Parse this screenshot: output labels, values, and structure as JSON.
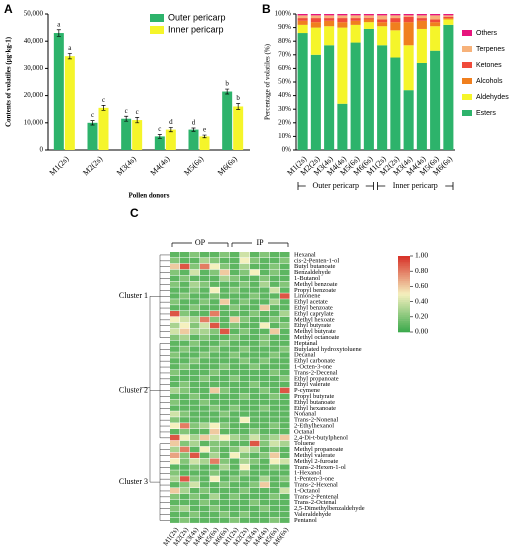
{
  "chart_data": [
    {
      "type": "bar",
      "panel": "A",
      "ylabel": "Contents of volatiles (μg·kg-1)",
      "xlabel": "Pollen donors",
      "categories": [
        "M1(2s)",
        "M2(2s)",
        "M3(4s)",
        "M4(4s)",
        "M5(6s)",
        "M6(6s)"
      ],
      "series": [
        {
          "name": "Outer pericarp",
          "color": "#2db36b",
          "values": [
            43000,
            10000,
            11500,
            5000,
            7500,
            21500
          ],
          "errors": [
            1200,
            800,
            900,
            700,
            600,
            900
          ],
          "letters": [
            "a",
            "c",
            "c",
            "c",
            "d",
            "b"
          ]
        },
        {
          "name": "Inner pericarp",
          "color": "#f5f52a",
          "values": [
            34500,
            15500,
            11000,
            7500,
            5000,
            16000
          ],
          "errors": [
            1000,
            900,
            1000,
            800,
            500,
            1100
          ],
          "letters": [
            "a",
            "c",
            "c",
            "d",
            "e",
            "b"
          ]
        }
      ],
      "ylim": [
        0,
        50000
      ],
      "yticks": [
        0,
        {
          "value": 10000,
          "label": "10,000"
        },
        {
          "value": 20000,
          "label": "20,000"
        },
        {
          "value": 30000,
          "label": "30,000"
        },
        {
          "value": 40000,
          "label": "40,000"
        },
        {
          "value": 50000,
          "label": "50,000"
        }
      ]
    },
    {
      "type": "stacked-bar",
      "panel": "B",
      "ylabel": "Percentage of volatiles (%)",
      "categories": [
        "M1(2s)",
        "M2(2s)",
        "M3(4s)",
        "M4(4s)",
        "M5(6s)",
        "M6(6s)",
        "M1(2s)",
        "M2(2s)",
        "M3(4s)",
        "M4(4s)",
        "M5(6s)",
        "M6(6s)"
      ],
      "groups": [
        "Outer pericarp",
        "Inner pericarp"
      ],
      "series": [
        {
          "name": "Esters",
          "color": "#2db36b",
          "values": [
            86,
            70,
            77,
            34,
            79,
            89,
            77,
            68,
            44,
            64,
            73,
            92
          ]
        },
        {
          "name": "Aldehydes",
          "color": "#f5f52a",
          "values": [
            6,
            20,
            14,
            56,
            13,
            5,
            14,
            20,
            33,
            25,
            18,
            4
          ]
        },
        {
          "name": "Alcohols",
          "color": "#f07f1e",
          "values": [
            3,
            4,
            4,
            4,
            3,
            2,
            3,
            6,
            17,
            6,
            3,
            1
          ]
        },
        {
          "name": "Ketones",
          "color": "#f04a3a",
          "values": [
            2,
            3,
            2,
            3,
            2,
            1,
            2,
            3,
            4,
            2,
            2,
            1
          ]
        },
        {
          "name": "Terpenes",
          "color": "#f7b27a",
          "values": [
            2,
            2,
            2,
            2,
            2,
            2,
            3,
            2,
            1,
            2,
            3,
            1
          ]
        },
        {
          "name": "Others",
          "color": "#e6157d",
          "values": [
            1,
            1,
            1,
            1,
            1,
            1,
            1,
            1,
            1,
            1,
            1,
            1
          ]
        }
      ],
      "ylim": [
        0,
        100
      ],
      "yticks": [
        {
          "value": 0,
          "label": "0%"
        },
        {
          "value": 10,
          "label": "10%"
        },
        {
          "value": 20,
          "label": "20%"
        },
        {
          "value": 30,
          "label": "30%"
        },
        {
          "value": 40,
          "label": "40%"
        },
        {
          "value": 50,
          "label": "50%"
        },
        {
          "value": 60,
          "label": "60%"
        },
        {
          "value": 70,
          "label": "70%"
        },
        {
          "value": 80,
          "label": "80%"
        },
        {
          "value": 90,
          "label": "90%"
        },
        {
          "value": 100,
          "label": "100%"
        }
      ]
    },
    {
      "type": "heatmap",
      "panel": "C",
      "columns": [
        "M1(2s)",
        "M2(2s)",
        "M3(4s)",
        "M4(4s)",
        "M5(6s)",
        "M6(6s)",
        "M1(2s)",
        "M2(2s)",
        "M3(4s)",
        "M4(4s)",
        "M5(6s)",
        "M6(6s)"
      ],
      "groups": [
        "OP",
        "IP"
      ],
      "clusters": [
        "Cluster 1",
        "Cluster 2",
        "Cluster 3"
      ],
      "rows": [
        "Hexanal",
        "cis-2-Penten-1-ol",
        "Butyl butanoate",
        "Benzaldehyde",
        "1-Butanol",
        "Methyl benzoate",
        "Propyl benzoate",
        "Limonene",
        "Ethyl acetate",
        "Ethyl benzoate",
        "Ethyl caprylate",
        "Methyl hexoate",
        "Ethyl butyrate",
        "Methyl butyrate",
        "Methyl octanoate",
        "Heptanal",
        "Butylated hydroxytoluene",
        "Decanal",
        "Ethyl carbonate",
        "1-Octen-3-one",
        "Trans-2-Decenal",
        "Ethyl propanoate",
        "Ethyl valerate",
        "P-cymene",
        "Propyl butyrate",
        "Ethyl butanoate",
        "Ethyl hexanoate",
        "Nonanal",
        "Trans-2-Nonenal",
        "2-Ethylhexanol",
        "Octanal",
        "2,4-Di-t-butylphenol",
        "Toluene",
        "Methyl propanoate",
        "Methyl valerate",
        "Methyl 2-furoate",
        "Trans-2-Hexen-1-ol",
        "1-Hexanol",
        "1-Penten-3-one",
        "Trans-2-Hexenal",
        "1-Octanol",
        "Trans-2-Pentenal",
        "Trans-2-Octenal",
        "2,5-Dimethylbenzaldehyde",
        "Valeraldehyde",
        "Pentanol"
      ],
      "values": [
        [
          0.1,
          0.1,
          0.2,
          0.1,
          0.1,
          0.2,
          0.1,
          0.4,
          0.1,
          0.2,
          0.1,
          0.1
        ],
        [
          0.2,
          0.1,
          0.1,
          0.3,
          0.2,
          0.1,
          0.1,
          0.5,
          0.2,
          0.1,
          0.1,
          0.2
        ],
        [
          0.6,
          0.9,
          0.2,
          0.8,
          0.5,
          0.2,
          0.1,
          0.3,
          0.1,
          0.1,
          0.2,
          0.1
        ],
        [
          0.2,
          0.1,
          0.4,
          0.1,
          0.2,
          0.6,
          0.1,
          0.2,
          0.5,
          0.1,
          0.2,
          0.1
        ],
        [
          0.1,
          0.2,
          0.1,
          0.1,
          0.1,
          0.3,
          0.2,
          0.1,
          0.1,
          0.2,
          0.1,
          0.1
        ],
        [
          0.2,
          0.1,
          0.3,
          0.2,
          0.1,
          0.1,
          0.1,
          0.2,
          0.1,
          0.3,
          0.1,
          0.2
        ],
        [
          0.1,
          0.1,
          0.2,
          0.1,
          0.5,
          0.1,
          0.2,
          0.1,
          0.1,
          0.1,
          0.4,
          0.1
        ],
        [
          0.1,
          0.2,
          0.1,
          0.1,
          0.2,
          0.1,
          0.1,
          0.1,
          0.2,
          0.1,
          0.1,
          0.9
        ],
        [
          0.2,
          0.1,
          0.1,
          0.2,
          0.1,
          0.6,
          0.1,
          0.2,
          0.1,
          0.1,
          0.3,
          0.1
        ],
        [
          0.1,
          0.1,
          0.2,
          0.1,
          0.1,
          0.1,
          0.2,
          0.1,
          0.1,
          0.6,
          0.1,
          0.1
        ],
        [
          0.9,
          0.2,
          0.1,
          0.1,
          0.8,
          0.1,
          0.1,
          0.1,
          0.2,
          0.1,
          0.1,
          0.3
        ],
        [
          0.5,
          0.4,
          0.3,
          0.8,
          0.2,
          0.1,
          0.6,
          0.2,
          0.1,
          0.1,
          0.2,
          0.1
        ],
        [
          0.3,
          0.5,
          0.2,
          0.4,
          0.9,
          0.1,
          0.2,
          0.1,
          0.1,
          0.5,
          0.1,
          0.2
        ],
        [
          0.4,
          0.6,
          0.3,
          0.3,
          0.2,
          0.9,
          0.1,
          0.2,
          0.1,
          0.1,
          0.6,
          0.1
        ],
        [
          0.2,
          0.3,
          0.1,
          0.2,
          0.1,
          0.1,
          0.2,
          0.1,
          0.1,
          0.2,
          0.1,
          0.1
        ],
        [
          0.1,
          0.1,
          0.2,
          0.1,
          0.1,
          0.2,
          0.1,
          0.1,
          0.1,
          0.2,
          0.1,
          0.1
        ],
        [
          0.1,
          0.2,
          0.1,
          0.1,
          0.2,
          0.1,
          0.1,
          0.2,
          0.1,
          0.1,
          0.1,
          0.2
        ],
        [
          0.2,
          0.1,
          0.1,
          0.2,
          0.1,
          0.1,
          0.2,
          0.1,
          0.1,
          0.1,
          0.2,
          0.1
        ],
        [
          0.1,
          0.1,
          0.2,
          0.1,
          0.1,
          0.1,
          0.1,
          0.2,
          0.1,
          0.2,
          0.1,
          0.1
        ],
        [
          0.1,
          0.2,
          0.1,
          0.1,
          0.1,
          0.2,
          0.1,
          0.1,
          0.2,
          0.1,
          0.1,
          0.1
        ],
        [
          0.2,
          0.1,
          0.1,
          0.1,
          0.2,
          0.1,
          0.1,
          0.1,
          0.1,
          0.1,
          0.2,
          0.1
        ],
        [
          0.1,
          0.1,
          0.1,
          0.2,
          0.1,
          0.1,
          0.2,
          0.1,
          0.1,
          0.1,
          0.1,
          0.2
        ],
        [
          0.1,
          0.2,
          0.1,
          0.1,
          0.1,
          0.1,
          0.1,
          0.1,
          0.2,
          0.1,
          0.1,
          0.1
        ],
        [
          0.3,
          0.2,
          0.1,
          0.1,
          0.6,
          0.2,
          0.1,
          0.1,
          0.1,
          0.2,
          0.1,
          0.9
        ],
        [
          0.1,
          0.1,
          0.2,
          0.1,
          0.1,
          0.1,
          0.1,
          0.2,
          0.1,
          0.1,
          0.2,
          0.1
        ],
        [
          0.2,
          0.1,
          0.1,
          0.2,
          0.1,
          0.1,
          0.1,
          0.1,
          0.1,
          0.1,
          0.1,
          0.1
        ],
        [
          0.1,
          0.1,
          0.1,
          0.1,
          0.2,
          0.1,
          0.2,
          0.1,
          0.1,
          0.2,
          0.1,
          0.1
        ],
        [
          0.4,
          0.2,
          0.1,
          0.1,
          0.1,
          0.2,
          0.1,
          0.1,
          0.1,
          0.1,
          0.1,
          0.1
        ],
        [
          0.2,
          0.1,
          0.1,
          0.1,
          0.1,
          0.1,
          0.1,
          0.5,
          0.1,
          0.1,
          0.1,
          0.1
        ],
        [
          0.5,
          0.8,
          0.2,
          0.3,
          0.5,
          0.2,
          0.1,
          0.1,
          0.1,
          0.1,
          0.2,
          0.1
        ],
        [
          0.1,
          0.2,
          0.1,
          0.1,
          0.6,
          0.1,
          0.1,
          0.1,
          0.2,
          0.1,
          0.1,
          0.1
        ],
        [
          0.9,
          0.5,
          0.3,
          0.6,
          0.4,
          0.5,
          0.3,
          0.2,
          0.4,
          0.2,
          0.3,
          0.6
        ],
        [
          0.6,
          0.2,
          0.3,
          0.1,
          0.2,
          0.2,
          0.1,
          0.1,
          0.9,
          0.2,
          0.4,
          0.3
        ],
        [
          0.3,
          0.8,
          0.1,
          0.5,
          0.2,
          0.1,
          0.2,
          0.4,
          0.3,
          0.1,
          0.2,
          0.1
        ],
        [
          0.7,
          0.2,
          0.9,
          0.1,
          0.3,
          0.1,
          0.5,
          0.2,
          0.1,
          0.2,
          0.6,
          0.1
        ],
        [
          0.5,
          0.2,
          0.4,
          0.3,
          0.8,
          0.2,
          0.1,
          0.3,
          0.2,
          0.1,
          0.5,
          0.4
        ],
        [
          0.1,
          0.1,
          0.2,
          0.1,
          0.1,
          0.3,
          0.1,
          0.5,
          0.1,
          0.1,
          0.2,
          0.1
        ],
        [
          0.2,
          0.1,
          0.1,
          0.1,
          0.2,
          0.1,
          0.1,
          0.2,
          0.1,
          0.1,
          0.1,
          0.1
        ],
        [
          0.3,
          0.9,
          0.2,
          0.1,
          0.5,
          0.1,
          0.2,
          0.1,
          0.1,
          0.3,
          0.1,
          0.2
        ],
        [
          0.1,
          0.2,
          0.4,
          0.1,
          0.1,
          0.2,
          0.1,
          0.1,
          0.2,
          0.6,
          0.1,
          0.1
        ],
        [
          0.6,
          0.3,
          0.1,
          0.2,
          0.1,
          0.1,
          0.1,
          0.2,
          0.1,
          0.1,
          0.1,
          0.4
        ],
        [
          0.2,
          0.1,
          0.2,
          0.1,
          0.3,
          0.1,
          0.2,
          0.1,
          0.1,
          0.1,
          0.2,
          0.1
        ],
        [
          0.1,
          0.1,
          0.1,
          0.2,
          0.1,
          0.1,
          0.1,
          0.1,
          0.2,
          0.1,
          0.1,
          0.1
        ],
        [
          0.2,
          0.3,
          0.1,
          0.1,
          0.2,
          0.1,
          0.1,
          0.1,
          0.1,
          0.2,
          0.1,
          0.1
        ],
        [
          0.1,
          0.1,
          0.2,
          0.1,
          0.1,
          0.2,
          0.1,
          0.2,
          0.1,
          0.1,
          0.1,
          0.1
        ],
        [
          0.1,
          0.2,
          0.1,
          0.1,
          0.1,
          0.1,
          0.2,
          0.1,
          0.1,
          0.1,
          0.2,
          0.1
        ]
      ],
      "zlim": [
        0,
        1
      ],
      "zticks": [
        {
          "value": 0,
          "label": "0.00"
        },
        {
          "value": 0.2,
          "label": "0.20"
        },
        {
          "value": 0.4,
          "label": "0.40"
        },
        {
          "value": 0.6,
          "label": "0.60"
        },
        {
          "value": 0.8,
          "label": "0.80"
        },
        {
          "value": 1,
          "label": "1.00"
        }
      ]
    }
  ]
}
